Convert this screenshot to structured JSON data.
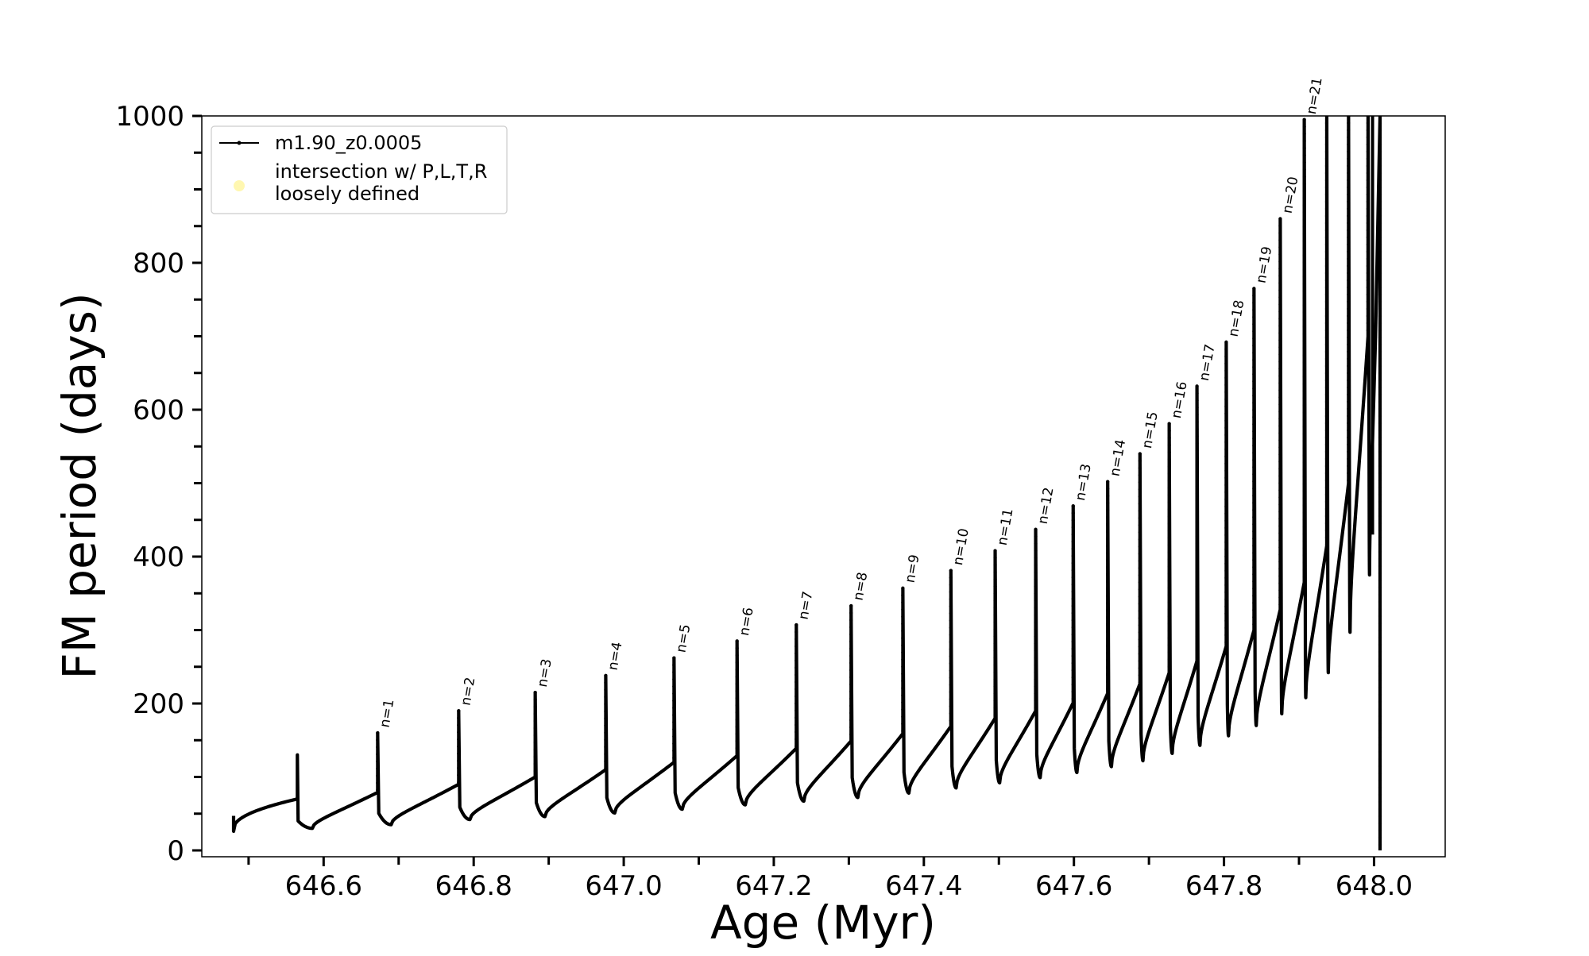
{
  "chart_data": {
    "type": "line",
    "title": "",
    "xlabel": "Age (Myr)",
    "ylabel": "FM period (days)",
    "xlim": [
      646.45,
      648.09
    ],
    "ylim": [
      -8,
      1000
    ],
    "x_ticks": [
      646.6,
      646.8,
      647.0,
      647.2,
      647.4,
      647.6,
      647.8,
      648.0
    ],
    "x_tick_labels": [
      "646.6",
      "646.8",
      "647.0",
      "647.2",
      "647.4",
      "647.6",
      "647.8",
      "648.0"
    ],
    "y_ticks": [
      0,
      200,
      400,
      600,
      800,
      1000
    ],
    "y_tick_labels": [
      "0",
      "200",
      "400",
      "600",
      "800",
      "1000"
    ],
    "grid": false,
    "legend": {
      "placement": "top-left",
      "entries": [
        {
          "label": "m1.90_z0.0005",
          "marker": "line-dot",
          "color": "#000000"
        },
        {
          "label": "intersection w/ P,L,T,R\nloosely defined",
          "marker": "circle",
          "color": "#fff7b0"
        }
      ]
    },
    "series": [
      {
        "name": "m1.90_z0.0005",
        "color": "#000000",
        "start": {
          "x": 646.48,
          "y": 30,
          "spike_peak": 47
        },
        "pre_pulse": {
          "x": 646.565,
          "y_before": 70,
          "spike_peak": 130,
          "y_after": 40,
          "min_x": 646.585,
          "min_y": 30
        },
        "pulses": [
          {
            "n": 1,
            "x": 646.672,
            "y_before": 79,
            "peak": 160,
            "min_x": 646.69,
            "min_y": 35
          },
          {
            "n": 2,
            "x": 646.78,
            "y_before": 90,
            "peak": 190,
            "min_x": 646.795,
            "min_y": 42
          },
          {
            "n": 3,
            "x": 646.882,
            "y_before": 100,
            "peak": 215,
            "min_x": 646.895,
            "min_y": 46
          },
          {
            "n": 4,
            "x": 646.976,
            "y_before": 110,
            "peak": 238,
            "min_x": 646.988,
            "min_y": 51
          },
          {
            "n": 5,
            "x": 647.067,
            "y_before": 120,
            "peak": 262,
            "min_x": 647.078,
            "min_y": 56
          },
          {
            "n": 6,
            "x": 647.151,
            "y_before": 129,
            "peak": 285,
            "min_x": 647.162,
            "min_y": 62
          },
          {
            "n": 7,
            "x": 647.23,
            "y_before": 139,
            "peak": 307,
            "min_x": 647.24,
            "min_y": 67
          },
          {
            "n": 8,
            "x": 647.303,
            "y_before": 149,
            "peak": 333,
            "min_x": 647.312,
            "min_y": 72
          },
          {
            "n": 9,
            "x": 647.372,
            "y_before": 159,
            "peak": 357,
            "min_x": 647.38,
            "min_y": 78
          },
          {
            "n": 10,
            "x": 647.436,
            "y_before": 169,
            "peak": 381,
            "min_x": 647.443,
            "min_y": 85
          },
          {
            "n": 11,
            "x": 647.495,
            "y_before": 180,
            "peak": 408,
            "min_x": 647.501,
            "min_y": 92
          },
          {
            "n": 12,
            "x": 647.549,
            "y_before": 190,
            "peak": 437,
            "min_x": 647.555,
            "min_y": 99
          },
          {
            "n": 13,
            "x": 647.599,
            "y_before": 201,
            "peak": 469,
            "min_x": 647.604,
            "min_y": 106
          },
          {
            "n": 14,
            "x": 647.645,
            "y_before": 214,
            "peak": 502,
            "min_x": 647.65,
            "min_y": 114
          },
          {
            "n": 15,
            "x": 647.688,
            "y_before": 227,
            "peak": 540,
            "min_x": 647.692,
            "min_y": 122
          },
          {
            "n": 16,
            "x": 647.727,
            "y_before": 242,
            "peak": 581,
            "min_x": 647.731,
            "min_y": 132
          },
          {
            "n": 17,
            "x": 647.764,
            "y_before": 258,
            "peak": 632,
            "min_x": 647.768,
            "min_y": 143
          },
          {
            "n": 18,
            "x": 647.803,
            "y_before": 278,
            "peak": 692,
            "min_x": 647.806,
            "min_y": 156
          },
          {
            "n": 19,
            "x": 647.84,
            "y_before": 300,
            "peak": 765,
            "min_x": 647.843,
            "min_y": 170
          },
          {
            "n": 20,
            "x": 647.875,
            "y_before": 328,
            "peak": 860,
            "min_x": 647.877,
            "min_y": 186
          },
          {
            "n": 21,
            "x": 647.907,
            "y_before": 365,
            "peak": 995,
            "min_x": 647.909,
            "min_y": 208
          },
          {
            "n": null,
            "x": 647.937,
            "y_before": 415,
            "peak": 1000,
            "min_x": 647.939,
            "min_y": 242
          },
          {
            "n": null,
            "x": 647.966,
            "y_before": 500,
            "peak": 1000,
            "min_x": 647.968,
            "min_y": 297
          },
          {
            "n": null,
            "x": 647.992,
            "y_before": 700,
            "peak": 1000,
            "min_x": 647.994,
            "min_y": 375
          }
        ],
        "end": {
          "x": 648.008,
          "y_top": 1000,
          "y_bottom": 0
        }
      }
    ]
  }
}
